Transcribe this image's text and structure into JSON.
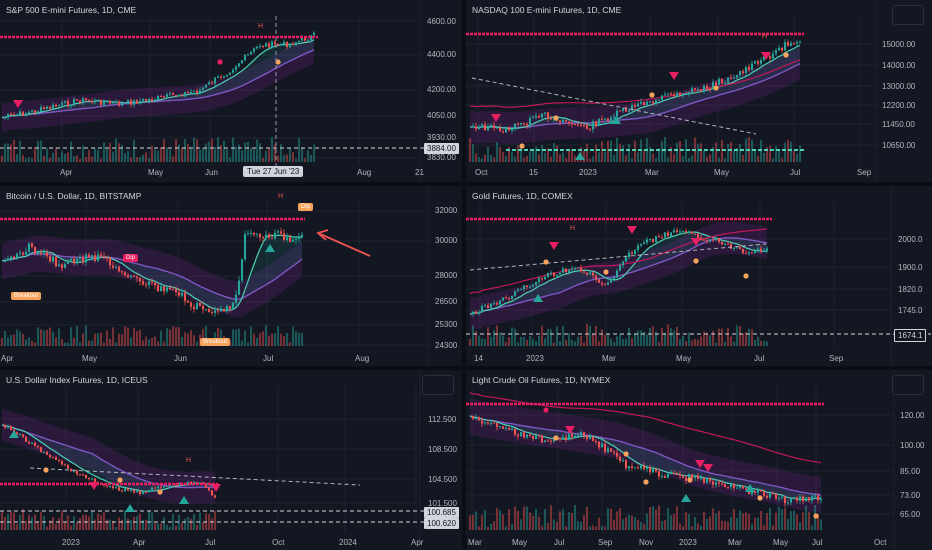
{
  "panels": [
    {
      "id": "spx",
      "title": "S&P 500 E-mini Futures, 1D, CME",
      "y_ticks": [
        "4600.00",
        "4400.00",
        "4200.00",
        "4050.00",
        "3930.00",
        "3830.00"
      ],
      "x_ticks": [
        "Apr",
        "May",
        "Jun",
        "Aug",
        "21"
      ],
      "price_label": "3884.00",
      "crosshair_date": "Tue 27 Jun '23",
      "signals": [
        "H"
      ]
    },
    {
      "id": "ndx",
      "title": "NASDAQ 100 E-mini Futures, 1D, CME",
      "y_ticks": [
        "15000.00",
        "14000.00",
        "13000.00",
        "12200.00",
        "11450.00",
        "10650.00"
      ],
      "x_ticks": [
        "Oct",
        "15",
        "2023",
        "Mar",
        "May",
        "Jul",
        "Sep"
      ],
      "signals": [
        "H"
      ]
    },
    {
      "id": "btc",
      "title": "Bitcoin / U.S. Dollar, 1D, BITSTAMP",
      "y_ticks": [
        "32000",
        "30000",
        "28000",
        "26500",
        "25300",
        "24300"
      ],
      "x_ticks": [
        "Apr",
        "May",
        "Jun",
        "Jul",
        "Aug"
      ],
      "signals": [
        "Dip",
        "Dip",
        "Breakout",
        "Breakout",
        "H"
      ]
    },
    {
      "id": "gold",
      "title": "Gold Futures, 1D, COMEX",
      "y_ticks": [
        "2000.0",
        "1900.0",
        "1820.0",
        "1745.0"
      ],
      "x_ticks": [
        "14",
        "2023",
        "Mar",
        "May",
        "Jul",
        "Sep"
      ],
      "price_label": "1674.1",
      "signals": [
        "H"
      ]
    },
    {
      "id": "dxy",
      "title": "U.S. Dollar Index Futures, 1D, ICEUS",
      "y_ticks": [
        "112.500",
        "108.500",
        "104.500",
        "101.500"
      ],
      "x_ticks": [
        "2023",
        "Apr",
        "Jul",
        "Oct",
        "2024",
        "Apr"
      ],
      "price_labels": [
        "100.685",
        "100.620"
      ],
      "signals": [
        "H"
      ]
    },
    {
      "id": "oil",
      "title": "Light Crude Oil Futures, 1D, NYMEX",
      "y_ticks": [
        "120.00",
        "100.00",
        "85.00",
        "73.00",
        "65.00"
      ],
      "x_ticks": [
        "Mar",
        "May",
        "Jul",
        "Sep",
        "Nov",
        "2023",
        "Mar",
        "May",
        "Jul",
        "Oct"
      ]
    }
  ],
  "colors": {
    "bg": "#131722",
    "up": "#26a69a",
    "down": "#ef5350",
    "grid": "#1f2330",
    "purple": "#7e57c2",
    "teal_line": "#4dd0b4",
    "orange": "#f7a35c",
    "magenta": "#e91e63",
    "red_arrow": "#f05350"
  }
}
